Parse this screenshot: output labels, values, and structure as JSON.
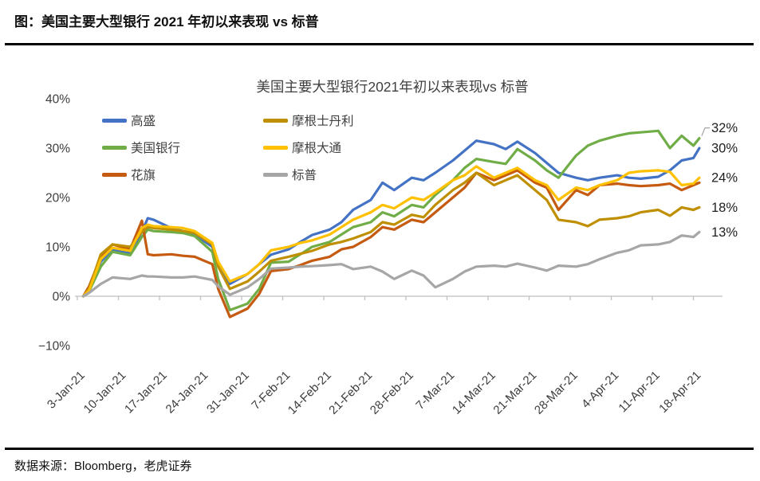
{
  "header": {
    "title": "图：美国主要大型银行 2021 年初以来表现 vs 标普"
  },
  "footer": {
    "source": "数据来源：Bloomberg，老虎证券"
  },
  "chart_data": {
    "type": "line",
    "title": "美国主要大型银行2021年初以来表现vs 标普",
    "ylabel": "",
    "xlabel": "",
    "ylim": [
      -10,
      40
    ],
    "y_ticks": [
      "40%",
      "30%",
      "20%",
      "10%",
      "0%",
      "−10%"
    ],
    "y_tick_values": [
      40,
      30,
      20,
      10,
      0,
      -10
    ],
    "grid": "off",
    "legend_position": "top-left, two columns",
    "x_tick_labels": [
      "3-Jan-21",
      "10-Jan-21",
      "17-Jan-21",
      "24-Jan-21",
      "31-Jan-21",
      "7-Feb-21",
      "14-Feb-21",
      "21-Feb-21",
      "28-Feb-21",
      "7-Mar-21",
      "14-Mar-21",
      "21-Mar-21",
      "28-Mar-21",
      "4-Apr-21",
      "11-Apr-21",
      "18-Apr-21"
    ],
    "x_days_since_2021_01_03": [
      1,
      2,
      4,
      6,
      9,
      11,
      12,
      13,
      16,
      18,
      20,
      23,
      24,
      26,
      29,
      31,
      33,
      36,
      38,
      40,
      43,
      45,
      47,
      50,
      52,
      54,
      57,
      59,
      61,
      64,
      66,
      68,
      71,
      73,
      75,
      78,
      80,
      82,
      85,
      87,
      89,
      92,
      94,
      96,
      99,
      101,
      103,
      105,
      106
    ],
    "unit": "percent change since start of 2021",
    "series": [
      {
        "name": "高盛",
        "color": "#4472C4",
        "values": [
          0,
          1.5,
          7,
          9.5,
          8.8,
          13,
          15.8,
          15.5,
          13.8,
          13.2,
          12.5,
          10,
          6.5,
          2.5,
          4.5,
          6.5,
          8.4,
          9.5,
          11,
          12.4,
          13.5,
          15,
          17.5,
          19.5,
          23,
          21.5,
          24,
          23.5,
          25,
          27.5,
          29.5,
          31.5,
          30.8,
          29.8,
          31.3,
          29,
          27,
          25,
          24,
          23.5,
          24,
          24.5,
          24,
          23.8,
          24.2,
          25.5,
          27.5,
          28,
          30
        ]
      },
      {
        "name": "美国银行",
        "color": "#70AD47",
        "values": [
          0,
          1,
          6,
          9,
          8.3,
          12,
          13.5,
          13.2,
          13,
          12.8,
          12.2,
          9,
          3.5,
          -2.8,
          -1.5,
          1.5,
          6.8,
          7,
          8.5,
          10,
          11,
          12.5,
          14,
          15,
          17,
          16.2,
          18.5,
          18,
          20.5,
          23.5,
          26,
          27.8,
          27.2,
          26.8,
          29.8,
          27.5,
          25.5,
          24,
          28.5,
          30.5,
          31.5,
          32.5,
          33,
          33.2,
          33.5,
          30,
          32.5,
          30.5,
          32
        ]
      },
      {
        "name": "花旗",
        "color": "#C55A11",
        "values": [
          0,
          2,
          8,
          10.5,
          9.5,
          15.3,
          8.5,
          8.3,
          8.5,
          8.2,
          8,
          6.5,
          1.5,
          -4.2,
          -2.5,
          0.5,
          5.1,
          5.5,
          6.3,
          7.2,
          8,
          9.5,
          10,
          12,
          14,
          13.5,
          15.5,
          15,
          17,
          20,
          22,
          25,
          23.5,
          24.5,
          25.5,
          23,
          22,
          17.5,
          21.5,
          20.5,
          22.5,
          22.8,
          22.5,
          22.3,
          22.5,
          22.8,
          21.5,
          22.5,
          23
        ]
      },
      {
        "name": "摩根士丹利",
        "color": "#BF8F00",
        "values": [
          0,
          1.5,
          8.5,
          10.5,
          10,
          13,
          14,
          13.8,
          13.5,
          13.2,
          12.8,
          10.5,
          6,
          1.5,
          3,
          5,
          7.2,
          8,
          8.6,
          9.2,
          10.5,
          11,
          11.7,
          13,
          15,
          14.5,
          16.5,
          16,
          18.5,
          21.5,
          23,
          25,
          22.5,
          23.5,
          24.5,
          21.5,
          19.5,
          15.5,
          15,
          14.2,
          15.5,
          15.8,
          16.2,
          17,
          17.5,
          16.3,
          18,
          17.5,
          18
        ]
      },
      {
        "name": "摩根大通",
        "color": "#FFC000",
        "values": [
          0,
          1.2,
          7.5,
          9.8,
          9.2,
          13.8,
          14.5,
          14.2,
          14,
          13.8,
          13.2,
          10.8,
          7,
          3,
          4.5,
          6.5,
          9.3,
          10,
          10.8,
          11.3,
          12.5,
          14,
          15.5,
          17,
          18.5,
          17.8,
          20,
          19.5,
          21,
          23.5,
          24.5,
          26.3,
          24,
          25,
          26,
          23.5,
          22.5,
          19.5,
          22,
          21.5,
          22.5,
          23.5,
          25,
          25.3,
          25.5,
          25.2,
          22.5,
          22.8,
          24
        ]
      },
      {
        "name": "标普",
        "color": "#A6A6A6",
        "values": [
          0,
          0.7,
          2.5,
          3.8,
          3.5,
          4.2,
          4,
          4,
          3.8,
          3.8,
          4,
          3.3,
          2,
          0.3,
          1.8,
          3.5,
          5.6,
          5.8,
          6,
          6.1,
          6.3,
          6.5,
          5.5,
          6,
          5,
          3.5,
          5.2,
          4.2,
          1.8,
          3.5,
          5,
          6,
          6.2,
          6,
          6.6,
          5.8,
          5.2,
          6.2,
          6,
          6.5,
          7.5,
          8.8,
          9.3,
          10.3,
          10.5,
          11,
          12.3,
          12,
          13
        ]
      }
    ],
    "end_labels": [
      {
        "text": "32%",
        "value": 32,
        "series": "美国银行"
      },
      {
        "text": "30%",
        "value": 30,
        "series": "高盛"
      },
      {
        "text": "24%",
        "value": 24,
        "series": "摩根大通"
      },
      {
        "text": "18%",
        "value": 18,
        "series": "摩根士丹利"
      },
      {
        "text": "13%",
        "value": 13,
        "series": "标普"
      }
    ]
  }
}
